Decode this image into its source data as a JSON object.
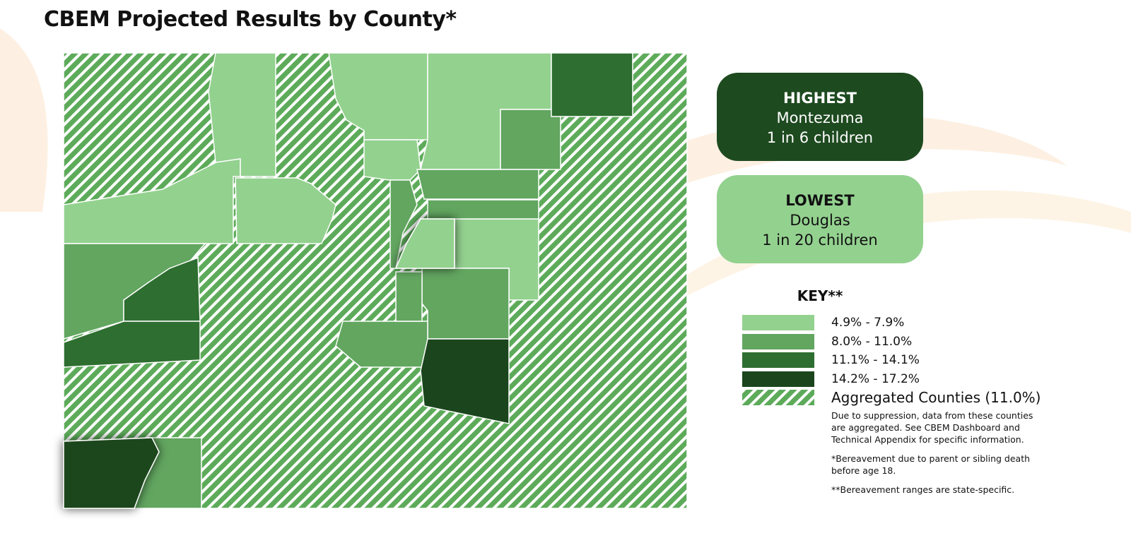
{
  "title": "CBEM Projected Results by County*",
  "highest": {
    "heading": "HIGHEST",
    "county": "Montezuma",
    "rate": "1 in 6 children"
  },
  "lowest": {
    "heading": "LOWEST",
    "county": "Douglas",
    "rate": "1 in 20 children"
  },
  "key": {
    "title": "KEY**",
    "items": [
      {
        "label": "4.9% - 7.9%",
        "color": "#93d18f"
      },
      {
        "label": "8.0% - 11.0%",
        "color": "#62a660"
      },
      {
        "label": "11.1% - 14.1%",
        "color": "#2e6e30"
      },
      {
        "label": "14.2% - 17.2%",
        "color": "#1b461d"
      },
      {
        "label": "Aggregated Counties (11.0%)",
        "pattern": true
      }
    ]
  },
  "notes": [
    "Due to suppression, data from these counties are aggregated. See CBEM Dashboard and Technical Appendix for specific information.",
    "*Bereavement due to parent or sibling death before age 18.",
    "**Bereavement ranges are state-specific."
  ]
}
